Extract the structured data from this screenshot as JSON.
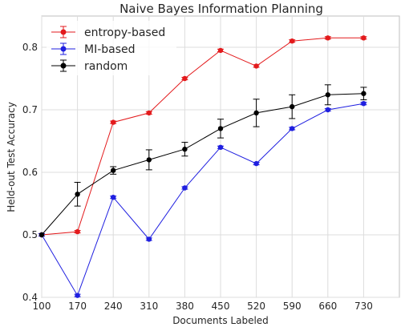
{
  "chart_data": {
    "type": "line",
    "title": "Naive Bayes Information Planning",
    "xlabel": "Documents Labeled",
    "ylabel": "Held-out Test Accuracy",
    "x": [
      100,
      170,
      240,
      310,
      380,
      450,
      520,
      590,
      660,
      730
    ],
    "x_ticks": [
      "100",
      "170",
      "240",
      "310",
      "380",
      "450",
      "520",
      "590",
      "660",
      "730"
    ],
    "xlim": [
      100,
      800
    ],
    "ylim": [
      0.4,
      0.85
    ],
    "y_ticks": [
      "0.4",
      "0.5",
      "0.6",
      "0.7",
      "0.8"
    ],
    "y_tick_values": [
      0.4,
      0.5,
      0.6,
      0.7,
      0.8
    ],
    "grid": true,
    "legend_position": "top-left",
    "series": [
      {
        "name": "entropy-based",
        "color": "#e31a1c",
        "values": [
          0.5,
          0.505,
          0.68,
          0.695,
          0.75,
          0.795,
          0.77,
          0.81,
          0.815,
          0.815
        ],
        "errors": [
          0.002,
          0.002,
          0.002,
          0.002,
          0.002,
          0.002,
          0.002,
          0.002,
          0.002,
          0.002
        ]
      },
      {
        "name": "MI-based",
        "color": "#1f1fe0",
        "values": [
          0.5,
          0.403,
          0.56,
          0.493,
          0.575,
          0.64,
          0.614,
          0.67,
          0.7,
          0.71
        ],
        "errors": [
          0.002,
          0.002,
          0.002,
          0.002,
          0.002,
          0.002,
          0.002,
          0.002,
          0.002,
          0.002
        ]
      },
      {
        "name": "random",
        "color": "#000000",
        "values": [
          0.5,
          0.565,
          0.603,
          0.62,
          0.637,
          0.67,
          0.695,
          0.705,
          0.724,
          0.726
        ],
        "errors": [
          0.0,
          0.019,
          0.006,
          0.016,
          0.011,
          0.015,
          0.022,
          0.019,
          0.016,
          0.01
        ]
      }
    ]
  }
}
